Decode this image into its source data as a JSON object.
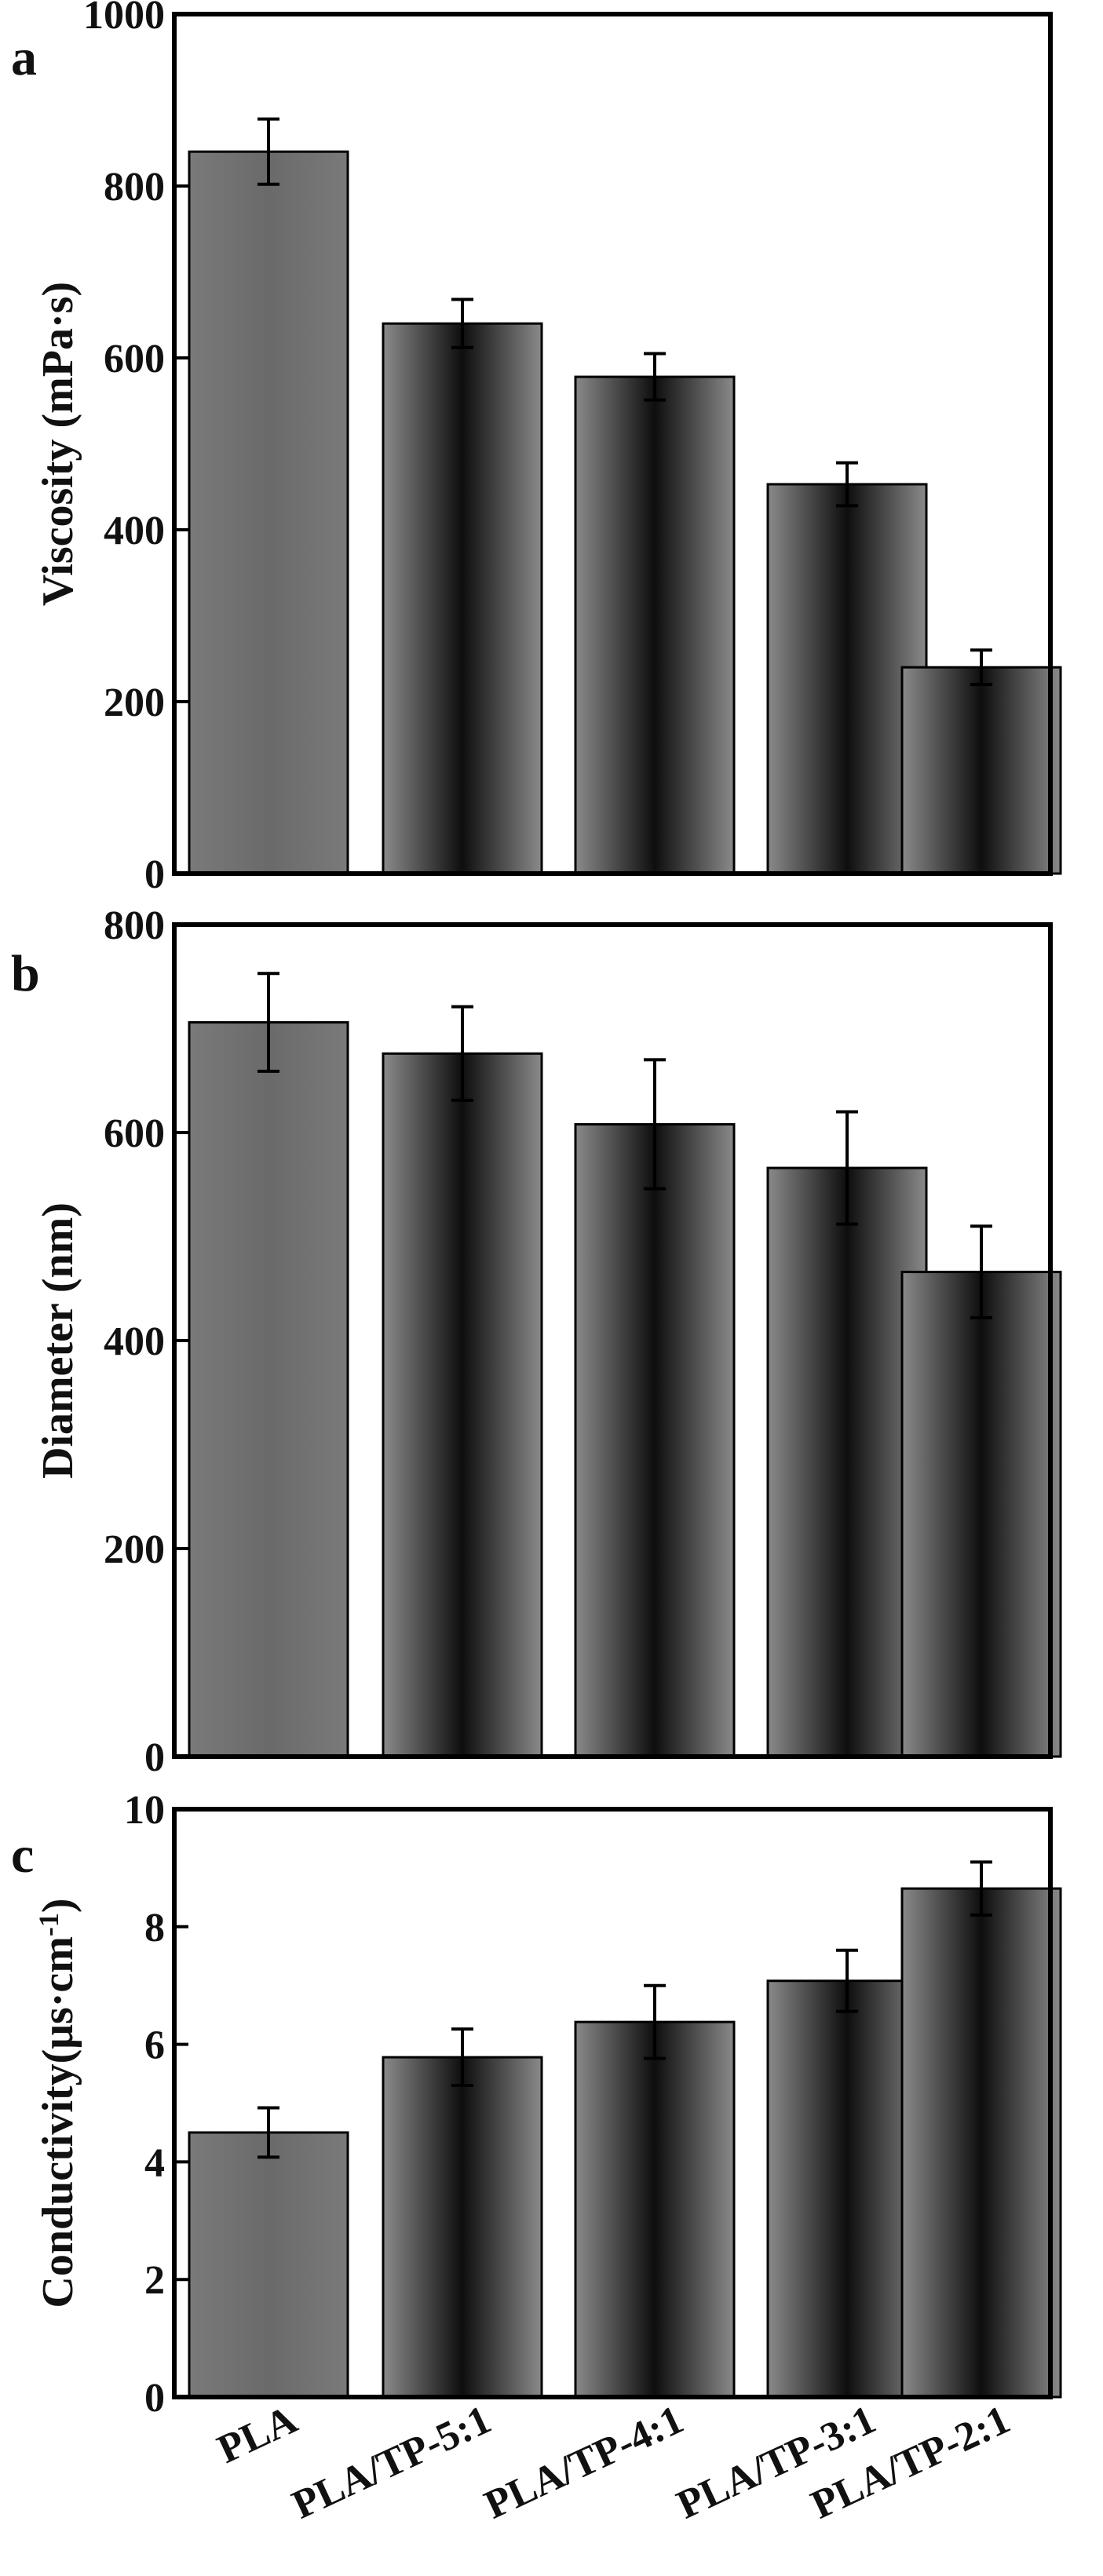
{
  "categories": [
    "PLA",
    "PLA/TP-5:1",
    "PLA/TP-4:1",
    "PLA/TP-3:1",
    "PLA/TP-2:1"
  ],
  "colors": {
    "bar_dark": "#141414",
    "bar_mid": "#5c5c5c",
    "bar_light": "#8a8a8a",
    "axis": "#000000"
  },
  "chart_data": [
    {
      "type": "bar",
      "panel_label": "a",
      "ylabel": "Viscosity (mPa·s)",
      "ylim": [
        0,
        1000
      ],
      "yticks": [
        "0",
        "200",
        "400",
        "600",
        "800",
        "1000"
      ],
      "categories": [
        "PLA",
        "PLA/TP-5:1",
        "PLA/TP-4:1",
        "PLA/TP-3:1",
        "PLA/TP-2:1"
      ],
      "values": [
        840,
        640,
        578,
        453,
        240
      ],
      "errors": [
        38,
        28,
        27,
        25,
        20
      ]
    },
    {
      "type": "bar",
      "panel_label": "b",
      "ylabel": "Diameter (nm)",
      "ylim": [
        0,
        800
      ],
      "yticks": [
        "0",
        "200",
        "400",
        "600",
        "800"
      ],
      "categories": [
        "PLA",
        "PLA/TP-5:1",
        "PLA/TP-4:1",
        "PLA/TP-3:1",
        "PLA/TP-2:1"
      ],
      "values": [
        706,
        676,
        608,
        566,
        466
      ],
      "errors": [
        47,
        45,
        62,
        54,
        44
      ]
    },
    {
      "type": "bar",
      "panel_label": "c",
      "ylabel": "Conductivity(μs·cm",
      "ylabel_superscript": "-1",
      "ylabel_suffix": ")",
      "ylim": [
        0,
        10
      ],
      "yticks": [
        "0",
        "2",
        "4",
        "6",
        "8",
        "10"
      ],
      "categories": [
        "PLA",
        "PLA/TP-5:1",
        "PLA/TP-4:1",
        "PLA/TP-3:1",
        "PLA/TP-2:1"
      ],
      "values": [
        4.5,
        5.78,
        6.38,
        7.08,
        8.65
      ],
      "errors": [
        0.42,
        0.48,
        0.62,
        0.52,
        0.45
      ]
    }
  ]
}
